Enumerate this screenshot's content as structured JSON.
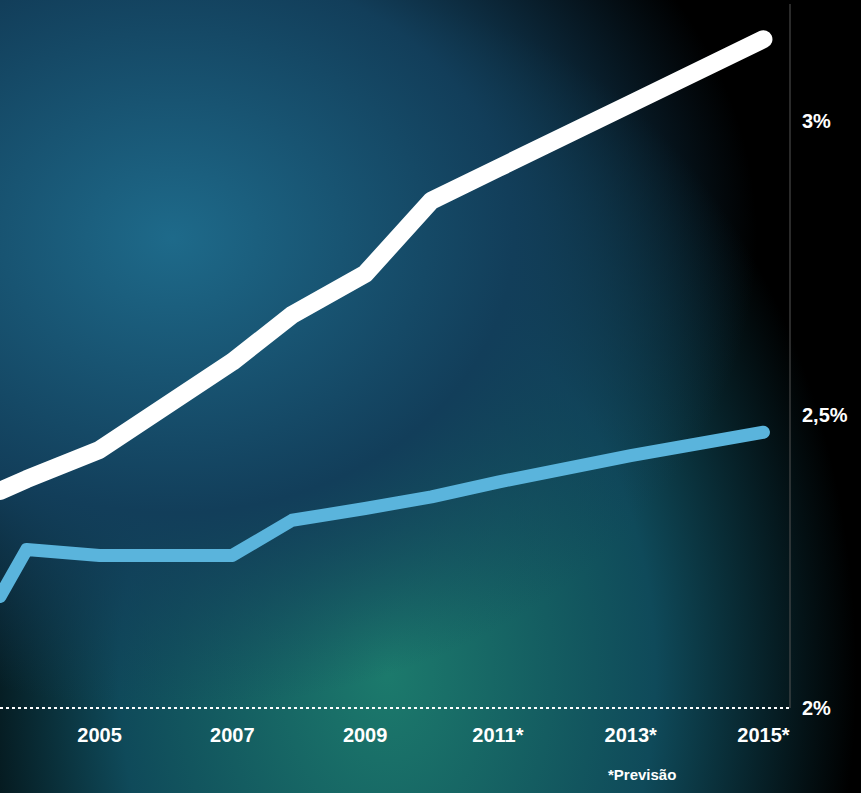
{
  "chart_data": {
    "type": "line",
    "x": [
      2003.5,
      2003.9,
      2005,
      2007,
      2007.9,
      2009,
      2010,
      2011,
      2013,
      2015
    ],
    "series": [
      {
        "color": "#ffffff",
        "values": [
          2.37,
          2.39,
          2.44,
          2.59,
          2.67,
          2.74,
          2.865,
          2.92,
          3.03,
          3.14
        ]
      },
      {
        "color": "#5ab4dc",
        "values": [
          2.19,
          2.27,
          2.26,
          2.26,
          2.32,
          2.34,
          2.36,
          2.385,
          2.43,
          2.47
        ]
      }
    ],
    "xlim": [
      2003.5,
      2015.4
    ],
    "xticks": [
      2005,
      2007,
      2009,
      {
        "value": 2011,
        "label": "2011*"
      },
      {
        "value": 2013,
        "label": "2013*"
      },
      {
        "value": 2015,
        "label": "2015*"
      }
    ],
    "ylim": [
      2,
      3.2
    ],
    "yticks": [
      {
        "value": 2,
        "label": "2%"
      },
      {
        "value": 2.5,
        "label": "2,5%"
      },
      {
        "value": 3,
        "label": "3%"
      }
    ],
    "grid": false,
    "annotations": [
      "*Previsão"
    ]
  }
}
